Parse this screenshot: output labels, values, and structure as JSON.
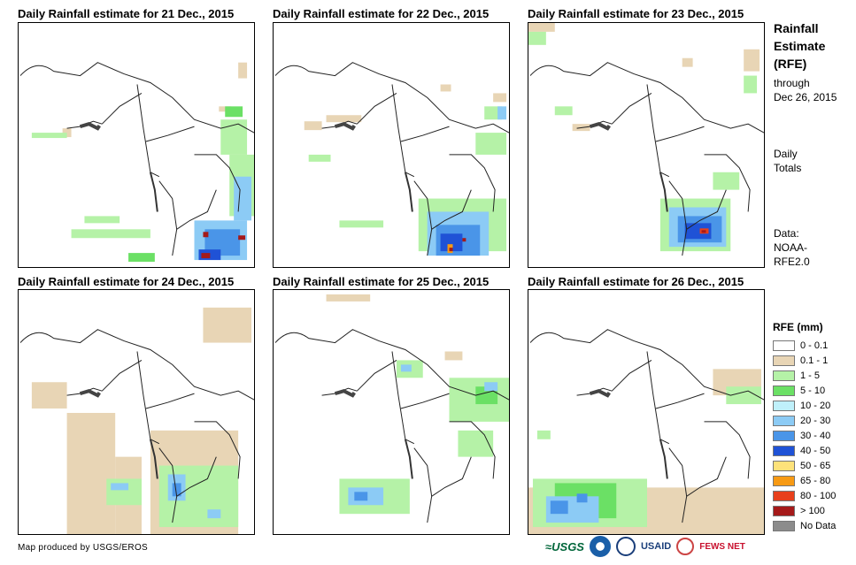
{
  "panels": [
    {
      "title": "Daily Rainfall estimate for 21 Dec., 2015"
    },
    {
      "title": "Daily Rainfall estimate for 22 Dec., 2015"
    },
    {
      "title": "Daily Rainfall estimate for 23 Dec., 2015"
    },
    {
      "title": "Daily Rainfall estimate for 24 Dec., 2015"
    },
    {
      "title": "Daily Rainfall estimate for 25 Dec., 2015"
    },
    {
      "title": "Daily Rainfall estimate for 26 Dec., 2015"
    }
  ],
  "sidebar": {
    "title_line1": "Rainfall",
    "title_line2": "Estimate",
    "title_line3": "(RFE)",
    "through": "through",
    "through_date": "Dec 26, 2015",
    "daily": "Daily",
    "totals": "Totals",
    "data_label": "Data:",
    "data_src1": "NOAA-",
    "data_src2": "RFE2.0"
  },
  "legend": {
    "title": "RFE (mm)",
    "items": [
      {
        "label": "0 - 0.1",
        "color": "#ffffff"
      },
      {
        "label": "0.1 - 1",
        "color": "#e8d5b5"
      },
      {
        "label": "1 - 5",
        "color": "#b5f2a7"
      },
      {
        "label": "5 - 10",
        "color": "#6be065"
      },
      {
        "label": "10 - 20",
        "color": "#bff0fa"
      },
      {
        "label": "20 - 30",
        "color": "#8ccbf5"
      },
      {
        "label": "30 - 40",
        "color": "#4a95e8"
      },
      {
        "label": "40 - 50",
        "color": "#1f52d6"
      },
      {
        "label": "50 - 65",
        "color": "#fde27a"
      },
      {
        "label": "65 - 80",
        "color": "#f79a14"
      },
      {
        "label": "80 - 100",
        "color": "#e8401c"
      },
      {
        "label": "> 100",
        "color": "#a51a1a"
      },
      {
        "label": "No Data",
        "color": "#8c8c8c"
      }
    ]
  },
  "credit": "Map produced by USGS/EROS",
  "logos": {
    "usgs": "≈USGS",
    "usaid": "USAID",
    "fews": "FEWS NET"
  }
}
